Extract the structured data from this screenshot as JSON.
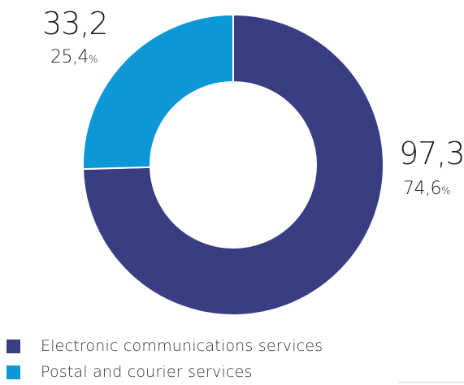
{
  "chart_data": {
    "type": "pie",
    "donut": true,
    "categories": [
      "Electronic communications services",
      "Postal and courier services"
    ],
    "values": [
      97.3,
      33.2
    ],
    "value_labels": [
      "97,3",
      "33,2"
    ],
    "percent_labels": [
      "74,6",
      "25,4"
    ],
    "percent_unit": "%",
    "colors": [
      "#393E83",
      "#0C97D6"
    ],
    "title": "",
    "legend_position": "bottom-left"
  }
}
